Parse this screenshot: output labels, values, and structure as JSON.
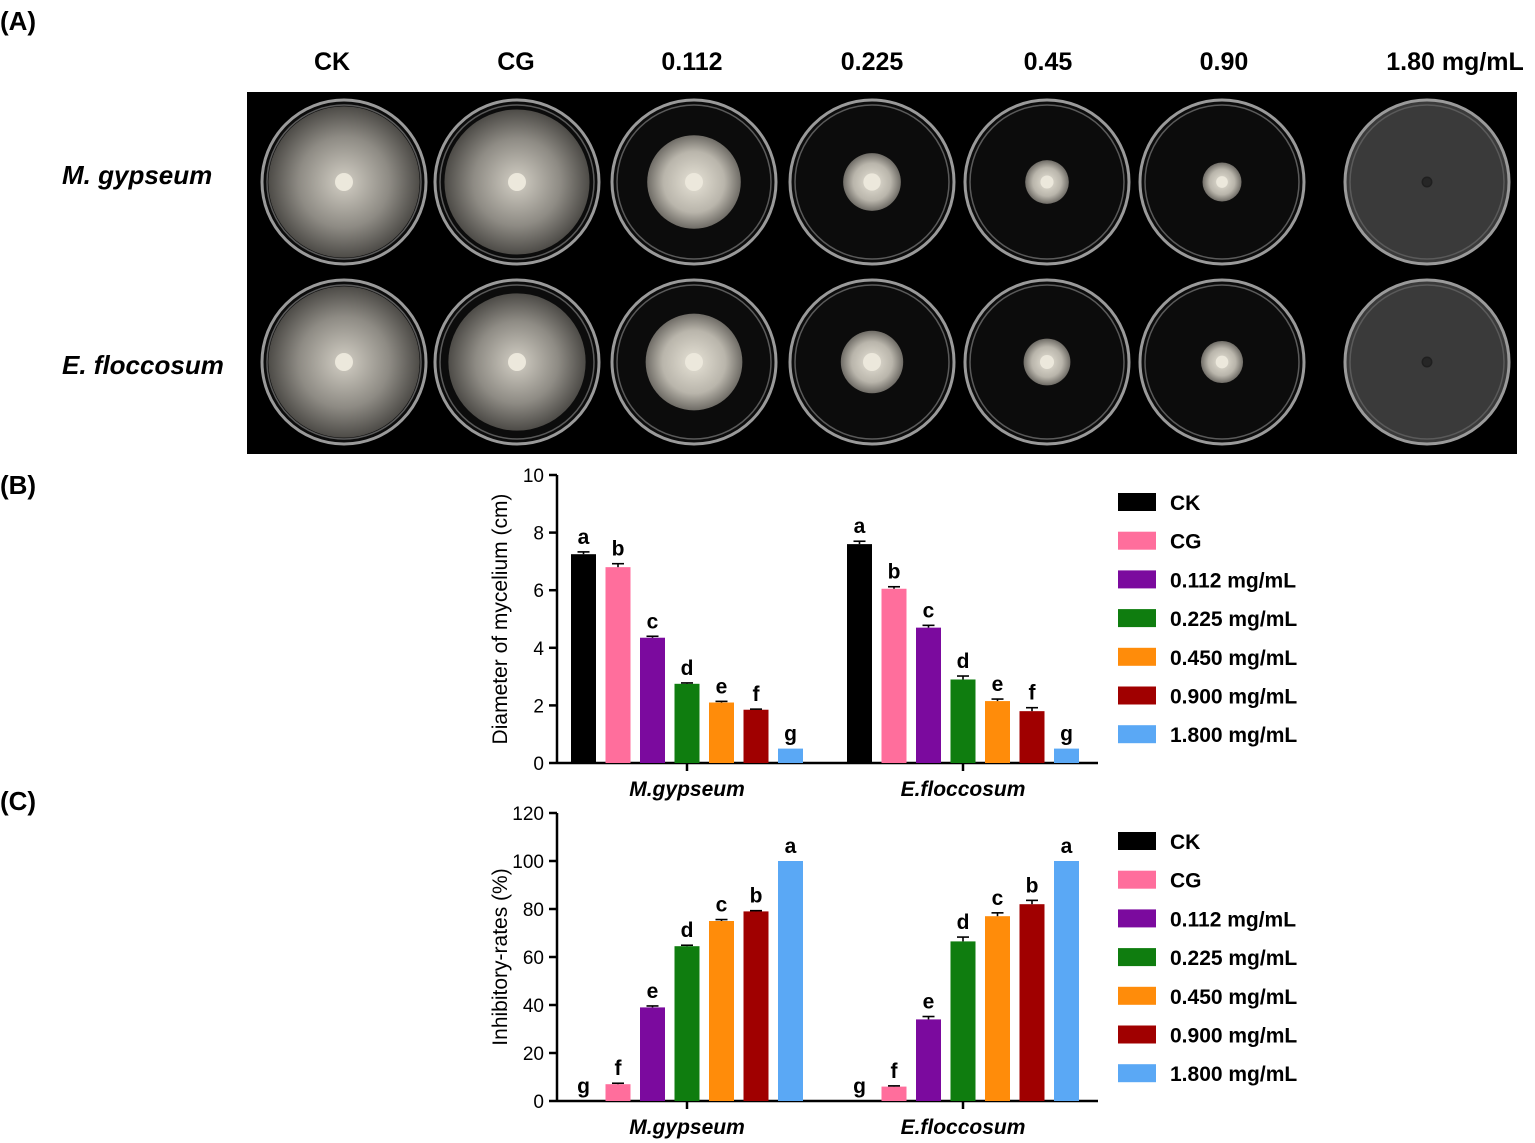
{
  "panels": {
    "a_label": "(A)",
    "b_label": "(B)",
    "c_label": "(C)"
  },
  "photo_grid": {
    "columns": [
      "CK",
      "CG",
      "0.112",
      "0.225",
      "0.45",
      "0.90",
      "1.80 mg/mL"
    ],
    "rows": [
      "M. gypseum",
      "E. floccosum"
    ],
    "colony_fraction": {
      "M. gypseum": [
        0.97,
        0.93,
        0.6,
        0.37,
        0.28,
        0.25,
        0.07
      ],
      "E. floccosum": [
        0.97,
        0.88,
        0.62,
        0.4,
        0.3,
        0.27,
        0.07
      ]
    }
  },
  "legend": {
    "items": [
      "CK",
      "CG",
      "0.112 mg/mL",
      "0.225 mg/mL",
      "0.450 mg/mL",
      "0.900 mg/mL",
      "1.800 mg/mL"
    ],
    "colors": [
      "#000000",
      "#ff6e9c",
      "#7b0a9e",
      "#0f7d0f",
      "#ff8c0a",
      "#a00000",
      "#5aa8f5"
    ]
  },
  "chart_data": [
    {
      "type": "bar",
      "title": "",
      "xlabel": "",
      "ylabel": "Diameter of mycelium (cm)",
      "ylim": [
        0,
        10
      ],
      "yticks": [
        "0",
        "2",
        "4",
        "6",
        "8",
        "10"
      ],
      "categories": [
        "M.gypseum",
        "E.floccosum"
      ],
      "series": [
        {
          "name": "CK",
          "values": [
            7.25,
            7.6
          ],
          "errors": [
            0.08,
            0.1
          ],
          "letters": [
            "a",
            "a"
          ]
        },
        {
          "name": "CG",
          "values": [
            6.8,
            6.05
          ],
          "errors": [
            0.12,
            0.07
          ],
          "letters": [
            "b",
            "b"
          ]
        },
        {
          "name": "0.112 mg/mL",
          "values": [
            4.35,
            4.7
          ],
          "errors": [
            0.05,
            0.08
          ],
          "letters": [
            "c",
            "c"
          ]
        },
        {
          "name": "0.225 mg/mL",
          "values": [
            2.75,
            2.9
          ],
          "errors": [
            0.03,
            0.12
          ],
          "letters": [
            "d",
            "d"
          ]
        },
        {
          "name": "0.450 mg/mL",
          "values": [
            2.1,
            2.15
          ],
          "errors": [
            0.04,
            0.07
          ],
          "letters": [
            "e",
            "e"
          ]
        },
        {
          "name": "0.900 mg/mL",
          "values": [
            1.85,
            1.8
          ],
          "errors": [
            0.02,
            0.12
          ],
          "letters": [
            "f",
            "f"
          ]
        },
        {
          "name": "1.800 mg/mL",
          "values": [
            0.5,
            0.5
          ],
          "errors": [
            0,
            0
          ],
          "letters": [
            "g",
            "g"
          ]
        }
      ],
      "grid": false,
      "legend_position": "right"
    },
    {
      "type": "bar",
      "title": "",
      "xlabel": "",
      "ylabel": "Inhibitory-rates (%)",
      "ylim": [
        0,
        120
      ],
      "yticks": [
        "0",
        "20",
        "40",
        "60",
        "80",
        "100",
        "120"
      ],
      "categories": [
        "M.gypseum",
        "E.floccosum"
      ],
      "series": [
        {
          "name": "CK",
          "values": [
            0,
            0
          ],
          "errors": [
            0,
            0
          ],
          "letters": [
            "g",
            "g"
          ]
        },
        {
          "name": "CG",
          "values": [
            7,
            6
          ],
          "errors": [
            0.4,
            0.3
          ],
          "letters": [
            "f",
            "f"
          ]
        },
        {
          "name": "0.112 mg/mL",
          "values": [
            39,
            34
          ],
          "errors": [
            0.6,
            1.2
          ],
          "letters": [
            "e",
            "e"
          ]
        },
        {
          "name": "0.225 mg/mL",
          "values": [
            64.5,
            66.5
          ],
          "errors": [
            0.4,
            1.8
          ],
          "letters": [
            "d",
            "d"
          ]
        },
        {
          "name": "0.450 mg/mL",
          "values": [
            75,
            77
          ],
          "errors": [
            0.6,
            1.4
          ],
          "letters": [
            "c",
            "c"
          ]
        },
        {
          "name": "0.900 mg/mL",
          "values": [
            79,
            82
          ],
          "errors": [
            0.3,
            1.6
          ],
          "letters": [
            "b",
            "b"
          ]
        },
        {
          "name": "1.800 mg/mL",
          "values": [
            100,
            100
          ],
          "errors": [
            0,
            0
          ],
          "letters": [
            "a",
            "a"
          ]
        }
      ],
      "grid": false,
      "legend_position": "right"
    }
  ]
}
